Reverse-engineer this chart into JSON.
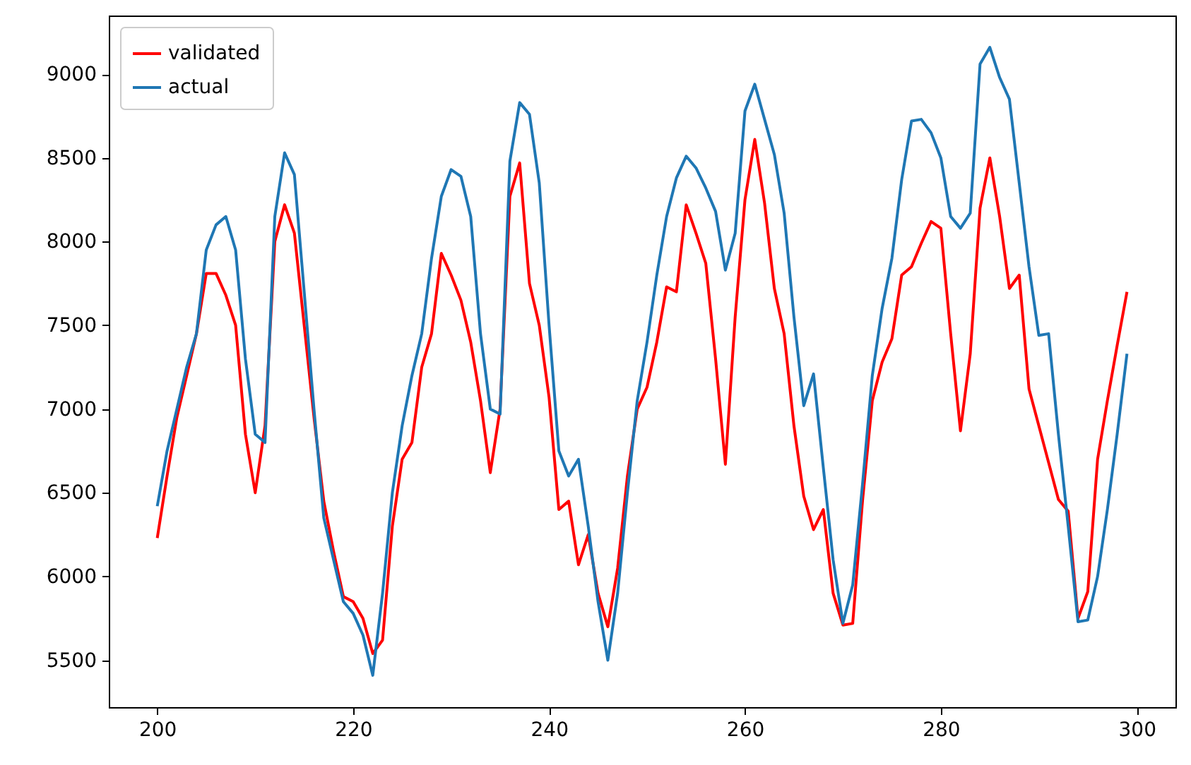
{
  "chart_data": {
    "type": "line",
    "x": [
      200,
      201,
      202,
      203,
      204,
      205,
      206,
      207,
      208,
      209,
      210,
      211,
      212,
      213,
      214,
      215,
      216,
      217,
      218,
      219,
      220,
      221,
      222,
      223,
      224,
      225,
      226,
      227,
      228,
      229,
      230,
      231,
      232,
      233,
      234,
      235,
      236,
      237,
      238,
      239,
      240,
      241,
      242,
      243,
      244,
      245,
      246,
      247,
      248,
      249,
      250,
      251,
      252,
      253,
      254,
      255,
      256,
      257,
      258,
      259,
      260,
      261,
      262,
      263,
      264,
      265,
      266,
      267,
      268,
      269,
      270,
      271,
      272,
      273,
      274,
      275,
      276,
      277,
      278,
      279,
      280,
      281,
      282,
      283,
      284,
      285,
      286,
      287,
      288,
      289,
      290,
      291,
      292,
      293,
      294,
      295,
      296,
      297,
      298,
      299
    ],
    "series": [
      {
        "name": "validated",
        "color": "#ff0000",
        "values": [
          6230,
          6600,
          6950,
          7200,
          7450,
          7810,
          7810,
          7680,
          7500,
          6850,
          6500,
          6900,
          8000,
          8220,
          8050,
          7500,
          6950,
          6450,
          6150,
          5880,
          5850,
          5750,
          5540,
          5620,
          6300,
          6700,
          6800,
          7250,
          7450,
          7930,
          7800,
          7650,
          7400,
          7050,
          6620,
          7000,
          8270,
          8470,
          7750,
          7500,
          7070,
          6400,
          6450,
          6070,
          6250,
          5900,
          5700,
          6050,
          6600,
          7000,
          7130,
          7400,
          7730,
          7700,
          8220,
          8050,
          7870,
          7300,
          6670,
          7550,
          8250,
          8610,
          8230,
          7720,
          7450,
          6900,
          6480,
          6280,
          6400,
          5900,
          5710,
          5720,
          6450,
          7050,
          7280,
          7420,
          7800,
          7850,
          7990,
          8120,
          8080,
          7450,
          6870,
          7330,
          8200,
          8500,
          8150,
          7720,
          7800,
          7120,
          6900,
          6680,
          6460,
          6390,
          5750,
          5910,
          6700,
          7050,
          7380,
          7700
        ]
      },
      {
        "name": "actual",
        "color": "#1f77b4",
        "values": [
          6420,
          6750,
          7000,
          7250,
          7450,
          7950,
          8100,
          8150,
          7950,
          7300,
          6850,
          6800,
          8150,
          8530,
          8400,
          7700,
          7000,
          6350,
          6100,
          5850,
          5780,
          5650,
          5410,
          5900,
          6500,
          6900,
          7200,
          7450,
          7900,
          8270,
          8430,
          8390,
          8150,
          7450,
          7000,
          6970,
          8480,
          8830,
          8760,
          8350,
          7500,
          6750,
          6600,
          6700,
          6300,
          5850,
          5500,
          5900,
          6500,
          7050,
          7400,
          7800,
          8150,
          8380,
          8510,
          8440,
          8320,
          8180,
          7830,
          8050,
          8780,
          8940,
          8730,
          8520,
          8170,
          7550,
          7020,
          7210,
          6650,
          6100,
          5720,
          5950,
          6550,
          7200,
          7600,
          7900,
          8370,
          8720,
          8730,
          8650,
          8500,
          8150,
          8080,
          8170,
          9060,
          9160,
          8980,
          8850,
          8350,
          7850,
          7440,
          7450,
          6850,
          6300,
          5730,
          5740,
          6000,
          6400,
          6850,
          7330
        ]
      }
    ],
    "xlim": [
      195.05,
      303.95
    ],
    "xticks": [
      200,
      220,
      240,
      260,
      280,
      300
    ],
    "ylim": [
      5220,
      9350
    ],
    "yticks": [
      5500,
      6000,
      6500,
      7000,
      7500,
      8000,
      8500,
      9000
    ],
    "grid": false,
    "legend": "top left",
    "line_style": "solid",
    "marker": "none"
  }
}
